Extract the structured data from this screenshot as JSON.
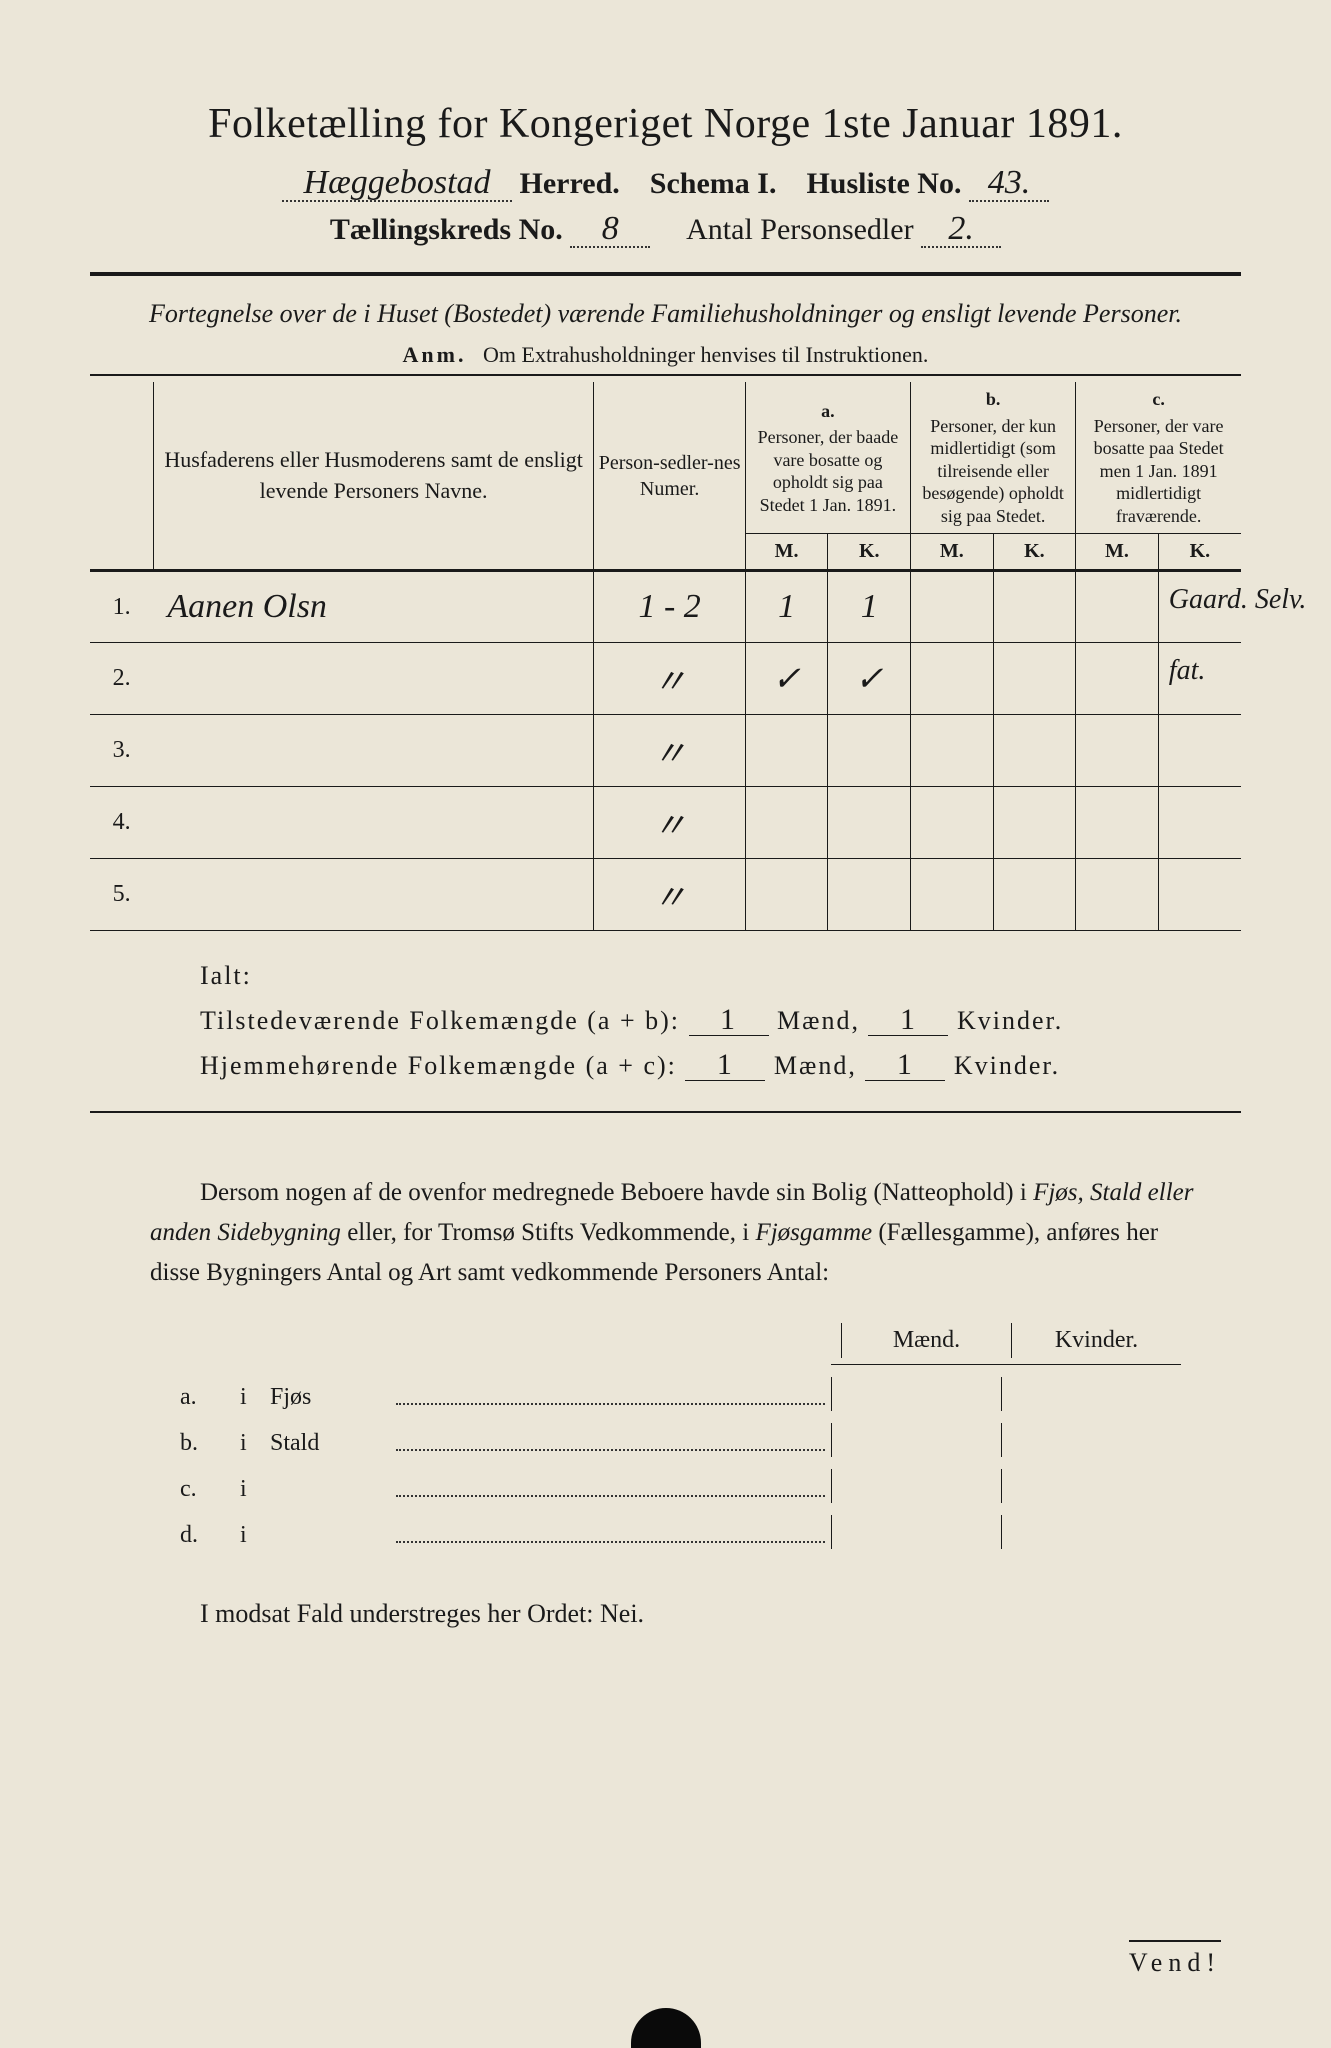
{
  "title": "Folketælling for Kongeriget Norge 1ste Januar 1891.",
  "header": {
    "herred_value": "Hæggebostad",
    "herred_label": "Herred.",
    "schema_label": "Schema I.",
    "husliste_label": "Husliste No.",
    "husliste_value": "43.",
    "kreds_label": "Tællingskreds No.",
    "kreds_value": "8",
    "antal_label": "Antal Personsedler",
    "antal_value": "2."
  },
  "subtitle": "Fortegnelse over de i Huset (Bostedet) værende Familiehusholdninger og ensligt levende Personer.",
  "anm": {
    "prefix": "Anm.",
    "text": "Om Extrahusholdninger henvises til Instruktionen."
  },
  "table": {
    "col_name": "Husfaderens eller Husmoderens samt de ensligt levende Personers Navne.",
    "col_numer": "Person-sedler-nes Numer.",
    "group_a_label": "a.",
    "group_a_text": "Personer, der baade vare bosatte og opholdt sig paa Stedet 1 Jan. 1891.",
    "group_b_label": "b.",
    "group_b_text": "Personer, der kun midlertidigt (som tilreisende eller besøgende) opholdt sig paa Stedet.",
    "group_c_label": "c.",
    "group_c_text": "Personer, der vare bosatte paa Stedet men 1 Jan. 1891 midlertidigt fraværende.",
    "m_label": "M.",
    "k_label": "K.",
    "rows": [
      {
        "num": "1.",
        "name": "Aanen Olsn",
        "numer": "1 - 2",
        "a_m": "1",
        "a_k": "1",
        "b_m": "",
        "b_k": "",
        "c_m": "",
        "c_k": "",
        "note": "Gaard. Selv."
      },
      {
        "num": "2.",
        "name": "",
        "numer": "〃",
        "a_m": "✓",
        "a_k": "✓",
        "b_m": "",
        "b_k": "",
        "c_m": "",
        "c_k": "",
        "note": "fat."
      },
      {
        "num": "3.",
        "name": "",
        "numer": "〃",
        "a_m": "",
        "a_k": "",
        "b_m": "",
        "b_k": "",
        "c_m": "",
        "c_k": "",
        "note": ""
      },
      {
        "num": "4.",
        "name": "",
        "numer": "〃",
        "a_m": "",
        "a_k": "",
        "b_m": "",
        "b_k": "",
        "c_m": "",
        "c_k": "",
        "note": ""
      },
      {
        "num": "5.",
        "name": "",
        "numer": "〃",
        "a_m": "",
        "a_k": "",
        "b_m": "",
        "b_k": "",
        "c_m": "",
        "c_k": "",
        "note": ""
      }
    ]
  },
  "totals": {
    "ialt_label": "Ialt:",
    "tilstede_label": "Tilstedeværende Folkemængde (a + b):",
    "hjemme_label": "Hjemmehørende Folkemængde (a + c):",
    "maend_label": "Mænd,",
    "kvinder_label": "Kvinder.",
    "tilstede_m": "1",
    "tilstede_k": "1",
    "hjemme_m": "1",
    "hjemme_k": "1"
  },
  "paragraph": "Dersom nogen af de ovenfor medregnede Beboere havde sin Bolig (Natteophold) i Fjøs, Stald eller anden Sidebygning eller, for Tromsø Stifts Vedkommende, i Fjøsgamme (Fællesgamme), anføres her disse Bygningers Antal og Art samt vedkommende Personers Antal:",
  "outbuildings": {
    "maend_label": "Mænd.",
    "kvinder_label": "Kvinder.",
    "rows": [
      {
        "letter": "a.",
        "i": "i",
        "label": "Fjøs"
      },
      {
        "letter": "b.",
        "i": "i",
        "label": "Stald"
      },
      {
        "letter": "c.",
        "i": "i",
        "label": ""
      },
      {
        "letter": "d.",
        "i": "i",
        "label": ""
      }
    ]
  },
  "nei_line": "I modsat Fald understreges her Ordet: Nei.",
  "vend": "Vend!",
  "colors": {
    "background": "#ebe6d8",
    "ink": "#1a1a1a"
  }
}
